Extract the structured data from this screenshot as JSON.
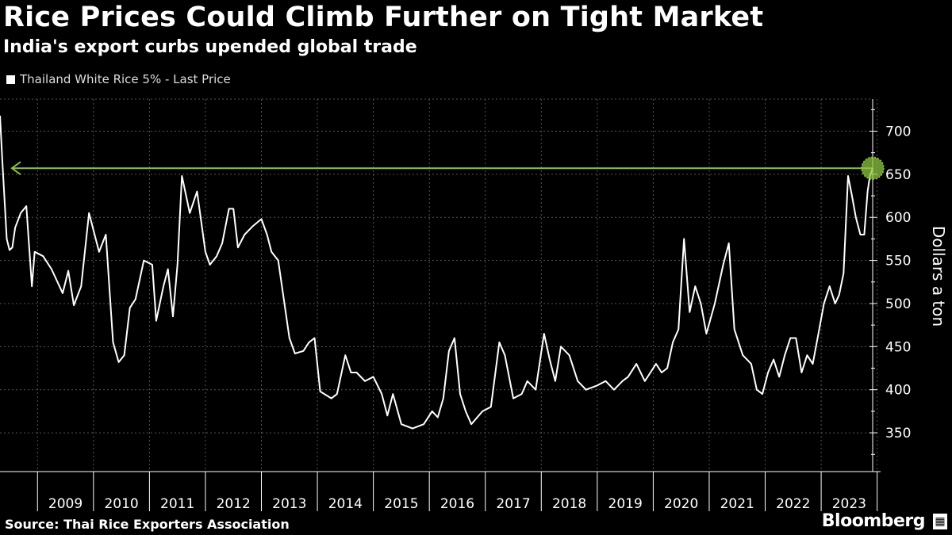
{
  "header": {
    "title": "Rice Prices Could Climb Further on Tight Market",
    "subtitle": "India's export curbs upended global trade"
  },
  "legend": {
    "label": "Thailand White Rice 5% - Last Price"
  },
  "footer": {
    "source": "Source: Thai Rice Exporters Association",
    "brand": "Bloomberg",
    "brand_icon": "bloomberg-terminal-icon"
  },
  "colors": {
    "background": "#000000",
    "line": "#ffffff",
    "highlight": "#8cc63f",
    "grid": "#555555"
  },
  "chart_data": {
    "type": "line",
    "title": "Rice Prices Could Climb Further on Tight Market",
    "subtitle": "India's export curbs upended global trade",
    "ylabel": "Dollars a ton",
    "ylim": [
      305,
      740
    ],
    "xlim": [
      2008.33,
      2023.92
    ],
    "yticks": [
      350,
      400,
      450,
      500,
      550,
      600,
      650,
      700
    ],
    "xticks": [
      "2009",
      "2010",
      "2011",
      "2012",
      "2013",
      "2014",
      "2015",
      "2016",
      "2017",
      "2018",
      "2019",
      "2020",
      "2021",
      "2022",
      "2023"
    ],
    "grid": true,
    "legend_position": "top-left",
    "reference_line": {
      "value": 657,
      "style": "arrow-left",
      "endpoint_marker": "circle"
    },
    "series": [
      {
        "name": "Thailand White Rice 5% - Last Price",
        "x": [
          2008.33,
          2008.37,
          2008.45,
          2008.5,
          2008.55,
          2008.6,
          2008.7,
          2008.8,
          2008.9,
          2008.95,
          2009.1,
          2009.25,
          2009.45,
          2009.55,
          2009.65,
          2009.78,
          2009.92,
          2010.1,
          2010.22,
          2010.35,
          2010.45,
          2010.55,
          2010.65,
          2010.75,
          2010.9,
          2011.05,
          2011.12,
          2011.25,
          2011.33,
          2011.42,
          2011.5,
          2011.58,
          2011.72,
          2011.85,
          2012.0,
          2012.08,
          2012.2,
          2012.3,
          2012.42,
          2012.5,
          2012.58,
          2012.7,
          2012.85,
          2013.0,
          2013.1,
          2013.18,
          2013.3,
          2013.5,
          2013.6,
          2013.75,
          2013.85,
          2013.95,
          2014.05,
          2014.25,
          2014.35,
          2014.5,
          2014.6,
          2014.7,
          2014.85,
          2015.0,
          2015.15,
          2015.25,
          2015.35,
          2015.5,
          2015.7,
          2015.9,
          2016.05,
          2016.15,
          2016.25,
          2016.35,
          2016.45,
          2016.55,
          2016.65,
          2016.75,
          2016.95,
          2017.1,
          2017.25,
          2017.35,
          2017.5,
          2017.65,
          2017.75,
          2017.9,
          2018.05,
          2018.15,
          2018.25,
          2018.35,
          2018.5,
          2018.65,
          2018.8,
          2019.0,
          2019.15,
          2019.3,
          2019.45,
          2019.55,
          2019.7,
          2019.85,
          2019.95,
          2020.05,
          2020.15,
          2020.25,
          2020.35,
          2020.45,
          2020.55,
          2020.65,
          2020.75,
          2020.85,
          2020.95,
          2021.1,
          2021.25,
          2021.35,
          2021.45,
          2021.6,
          2021.75,
          2021.85,
          2021.95,
          2022.05,
          2022.15,
          2022.25,
          2022.35,
          2022.45,
          2022.55,
          2022.65,
          2022.75,
          2022.85,
          2022.95,
          2023.05,
          2023.15,
          2023.25,
          2023.32,
          2023.4,
          2023.48,
          2023.55,
          2023.62,
          2023.7,
          2023.77,
          2023.83,
          2023.87,
          2023.92
        ],
        "values": [
          718,
          668,
          575,
          562,
          565,
          588,
          605,
          613,
          520,
          560,
          555,
          540,
          512,
          538,
          498,
          520,
          605,
          560,
          580,
          455,
          432,
          440,
          495,
          505,
          550,
          545,
          480,
          520,
          540,
          485,
          545,
          648,
          605,
          630,
          560,
          545,
          555,
          570,
          610,
          610,
          565,
          580,
          590,
          598,
          580,
          560,
          550,
          460,
          442,
          445,
          455,
          460,
          398,
          390,
          395,
          440,
          420,
          420,
          410,
          415,
          395,
          370,
          395,
          360,
          355,
          360,
          375,
          368,
          390,
          445,
          460,
          395,
          375,
          360,
          375,
          380,
          455,
          440,
          390,
          395,
          410,
          400,
          465,
          435,
          410,
          450,
          440,
          410,
          400,
          405,
          410,
          400,
          410,
          415,
          430,
          410,
          420,
          430,
          420,
          425,
          455,
          470,
          575,
          490,
          520,
          500,
          465,
          500,
          545,
          570,
          470,
          440,
          430,
          400,
          395,
          420,
          435,
          415,
          440,
          460,
          460,
          420,
          440,
          430,
          465,
          500,
          520,
          500,
          510,
          535,
          648,
          625,
          600,
          580,
          580,
          630,
          648,
          657
        ]
      }
    ]
  }
}
